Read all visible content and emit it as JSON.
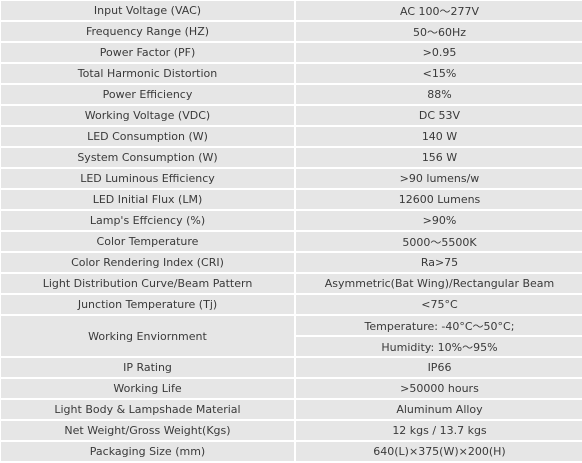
{
  "specs": [
    {
      "label": "Input Voltage (VAC)",
      "value": "AC 100～277V"
    },
    {
      "label": "Frequency Range (HZ)",
      "value": "50～60Hz"
    },
    {
      "label": "Power Factor (PF)",
      "value": ">0.95"
    },
    {
      "label": "Total Harmonic Distortion",
      "value": "<15%"
    },
    {
      "label": "Power Efficiency",
      "value": "88%"
    },
    {
      "label": "Working Voltage (VDC)",
      "value": "DC 53V"
    },
    {
      "label": "LED Consumption (W)",
      "value": "140 W"
    },
    {
      "label": "System Consumption (W)",
      "value": "156 W"
    },
    {
      "label": "LED Luminous Efficiency",
      "value": ">90 lumens/w"
    },
    {
      "label": "LED Initial Flux (LM)",
      "value": "12600 Lumens"
    },
    {
      "label": "Lamp's Effciency (%)",
      "value": ">90%"
    },
    {
      "label": "Color Temperature",
      "value": "5000～5500K"
    },
    {
      "label": "Color Rendering Index (CRI)",
      "value": "Ra>75"
    },
    {
      "label": "Light Distribution Curve/Beam Pattern",
      "value": "Asymmetric(Bat Wing)/Rectangular Beam"
    },
    {
      "label": "Junction Temperature (Tj)",
      "value": "<75°C"
    },
    {
      "label": "Working Enviornment",
      "values": [
        "Temperature: -40°C～50°C;",
        "Humidity: 10%～95%"
      ]
    },
    {
      "label": "IP Rating",
      "value": "IP66"
    },
    {
      "label": "Working Life",
      "value": ">50000 hours"
    },
    {
      "label": "Light Body & Lampshade Material",
      "value": "Aluminum Alloy"
    },
    {
      "label": "Net Weight/Gross Weight(Kgs)",
      "value": "12 kgs / 13.7 kgs"
    },
    {
      "label": "Packaging Size (mm)",
      "value": "640(L)×375(W)×200(H)"
    }
  ]
}
